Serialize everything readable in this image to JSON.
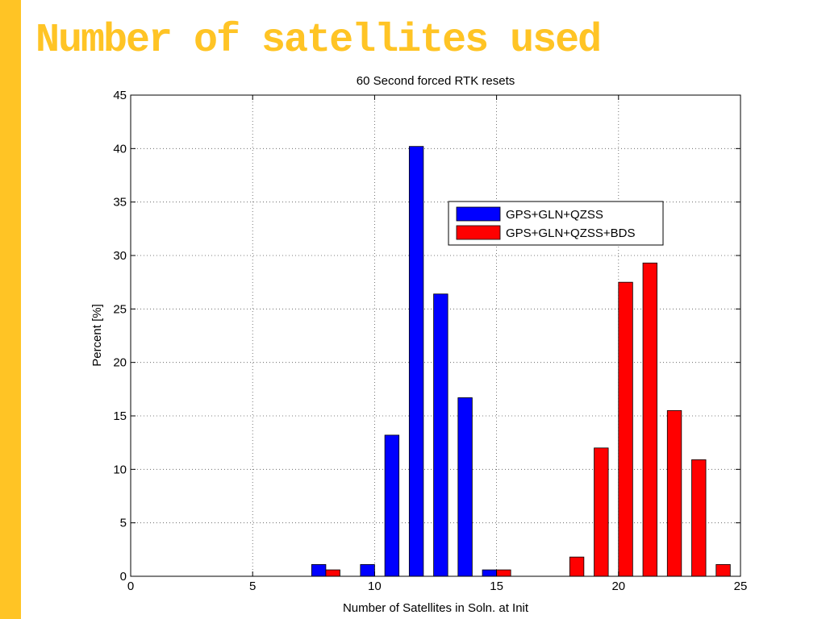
{
  "slide": {
    "title": "Number of satellites used",
    "accent_color": "#FFC425"
  },
  "chart_data": {
    "type": "bar",
    "title": "60 Second forced RTK resets",
    "xlabel": "Number of Satellites in Soln. at Init",
    "ylabel": "Percent [%]",
    "xlim": [
      0,
      25
    ],
    "ylim": [
      0,
      45
    ],
    "xticks": [
      0,
      5,
      10,
      15,
      20,
      25
    ],
    "yticks": [
      0,
      5,
      10,
      15,
      20,
      25,
      30,
      35,
      40,
      45
    ],
    "grid": true,
    "legend_position": "upper-right",
    "series": [
      {
        "name": "GPS+GLN+QZSS",
        "color": "#0000FF",
        "x": [
          8,
          10,
          11,
          12,
          13,
          14,
          15
        ],
        "values": [
          1.1,
          1.1,
          13.2,
          40.2,
          26.4,
          16.7,
          0.6
        ]
      },
      {
        "name": "GPS+GLN+QZSS+BDS",
        "color": "#FF0000",
        "x": [
          8,
          15,
          18,
          19,
          20,
          21,
          22,
          23,
          24
        ],
        "values": [
          0.6,
          0.6,
          1.8,
          12.0,
          27.5,
          29.3,
          15.5,
          10.9,
          1.1
        ]
      }
    ]
  }
}
